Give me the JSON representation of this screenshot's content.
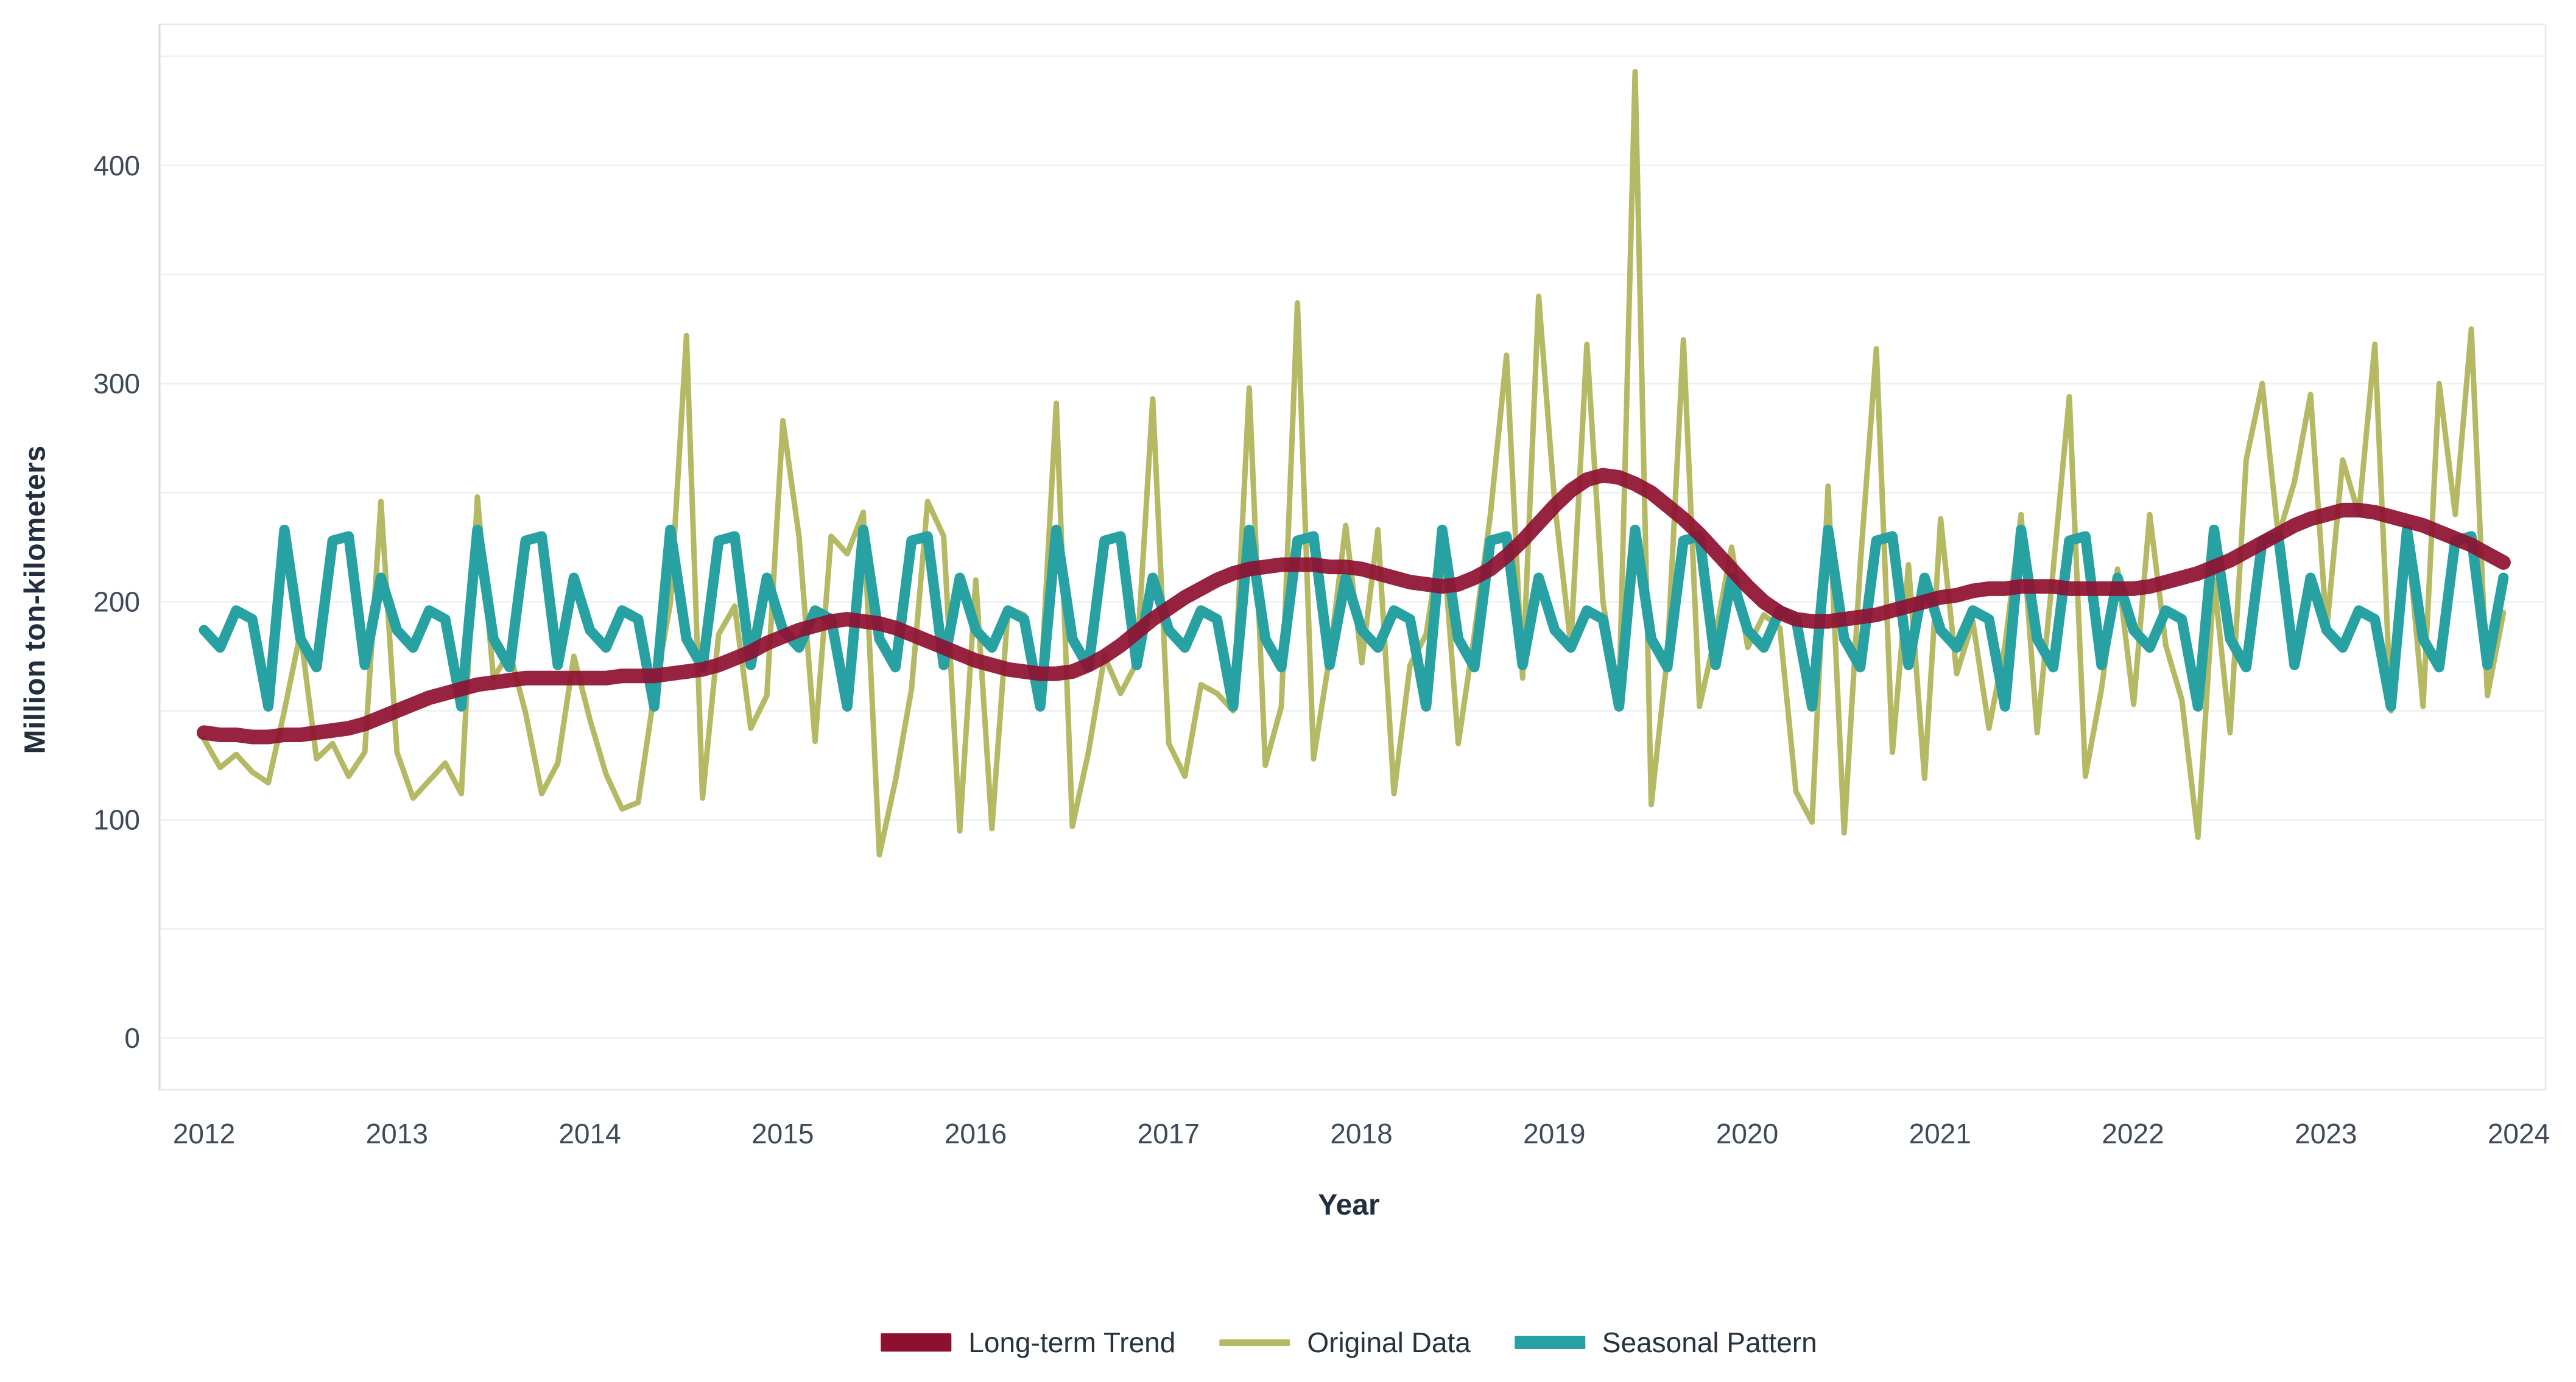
{
  "axes": {
    "y_label": "Million ton-kilometers",
    "x_label": "Year",
    "y_ticks": [
      0,
      100,
      200,
      300,
      400
    ],
    "x_ticks": [
      2012,
      2013,
      2014,
      2015,
      2016,
      2017,
      2018,
      2019,
      2020,
      2021,
      2022,
      2023,
      2024
    ],
    "grid_step": 50,
    "grid_max": 450
  },
  "legend": [
    {
      "label": "Long-term Trend",
      "color": "#8e1030",
      "swatch_height": 30
    },
    {
      "label": "Original Data",
      "color": "#b5b963",
      "swatch_height": 11
    },
    {
      "label": "Seasonal Pattern",
      "color": "#27a1a2",
      "swatch_height": 22
    }
  ],
  "colors": {
    "trend": "#8e1030",
    "original": "#b5b963",
    "seasonal": "#27a1a2",
    "grid": "#edeff2",
    "panel_border": "#e5e8ea",
    "axis_spine": "#d7dadd",
    "tick_text": "#3e4a59",
    "title_text": "#222e3e"
  },
  "chart_data": {
    "type": "line",
    "title": "",
    "xlabel": "Year",
    "ylabel": "Million ton-kilometers",
    "x_start_year": 2012,
    "x_end_year": 2024,
    "points_per_year": 12,
    "n_points": 144,
    "ylim": [
      -25,
      465
    ],
    "grid": "horizontal-only",
    "legend_position": "bottom",
    "series": [
      {
        "name": "Original Data",
        "color": "#b5b963",
        "stroke_width": 9,
        "values": [
          137,
          124,
          130,
          122,
          117,
          150,
          186,
          128,
          135,
          120,
          131,
          246,
          131,
          110,
          118,
          126,
          112,
          248,
          165,
          177,
          149,
          112,
          126,
          175,
          146,
          121,
          105,
          108,
          158,
          199,
          322,
          110,
          185,
          198,
          142,
          157,
          283,
          230,
          136,
          230,
          222,
          241,
          84,
          118,
          160,
          246,
          230,
          95,
          210,
          96,
          197,
          194,
          157,
          291,
          97,
          131,
          175,
          158,
          172,
          293,
          135,
          120,
          162,
          158,
          150,
          298,
          125,
          152,
          337,
          128,
          175,
          235,
          172,
          233,
          112,
          171,
          185,
          233,
          135,
          185,
          240,
          313,
          165,
          340,
          245,
          180,
          318,
          200,
          155,
          443,
          107,
          175,
          320,
          152,
          185,
          225,
          179,
          194,
          188,
          113,
          99,
          253,
          94,
          217,
          316,
          131,
          217,
          119,
          238,
          167,
          191,
          142,
          180,
          240,
          140,
          215,
          294,
          120,
          160,
          215,
          153,
          240,
          180,
          155,
          92,
          210,
          140,
          265,
          300,
          230,
          255,
          295,
          187,
          265,
          240,
          318,
          150,
          233,
          152,
          300,
          240,
          325,
          157,
          195
        ]
      },
      {
        "name": "Seasonal Pattern",
        "color": "#27a1a2",
        "stroke_width": 17,
        "values": [
          187,
          179,
          196,
          192,
          152,
          233,
          183,
          170,
          228,
          230,
          171,
          211,
          187,
          179,
          196,
          192,
          152,
          233,
          183,
          170,
          228,
          230,
          171,
          211,
          187,
          179,
          196,
          192,
          152,
          233,
          183,
          170,
          228,
          230,
          171,
          211,
          187,
          179,
          196,
          192,
          152,
          233,
          183,
          170,
          228,
          230,
          171,
          211,
          187,
          179,
          196,
          192,
          152,
          233,
          183,
          170,
          228,
          230,
          171,
          211,
          187,
          179,
          196,
          192,
          152,
          233,
          183,
          170,
          228,
          230,
          171,
          211,
          187,
          179,
          196,
          192,
          152,
          233,
          183,
          170,
          228,
          230,
          171,
          211,
          187,
          179,
          196,
          192,
          152,
          233,
          183,
          170,
          228,
          230,
          171,
          211,
          187,
          179,
          196,
          192,
          152,
          233,
          183,
          170,
          228,
          230,
          171,
          211,
          187,
          179,
          196,
          192,
          152,
          233,
          183,
          170,
          228,
          230,
          171,
          211,
          187,
          179,
          196,
          192,
          152,
          233,
          183,
          170,
          228,
          230,
          171,
          211,
          187,
          179,
          196,
          192,
          152,
          233,
          183,
          170,
          228,
          230,
          171,
          211
        ]
      },
      {
        "name": "Long-term Trend",
        "color": "#8e1030",
        "stroke_width": 24,
        "values": [
          140,
          139,
          139,
          138,
          138,
          139,
          139,
          140,
          141,
          142,
          144,
          147,
          150,
          153,
          156,
          158,
          160,
          162,
          163,
          164,
          165,
          165,
          165,
          165,
          165,
          165,
          166,
          166,
          166,
          167,
          168,
          169,
          171,
          174,
          177,
          181,
          184,
          187,
          189,
          191,
          192,
          191,
          190,
          188,
          185,
          182,
          179,
          176,
          173,
          171,
          169,
          168,
          167,
          167,
          168,
          171,
          175,
          180,
          186,
          192,
          197,
          202,
          206,
          210,
          213,
          215,
          216,
          217,
          217,
          217,
          216,
          216,
          215,
          213,
          211,
          209,
          208,
          207,
          208,
          211,
          215,
          221,
          228,
          236,
          244,
          251,
          256,
          258,
          257,
          254,
          250,
          244,
          238,
          231,
          223,
          215,
          207,
          200,
          195,
          192,
          191,
          191,
          192,
          193,
          194,
          196,
          198,
          200,
          202,
          203,
          205,
          206,
          206,
          207,
          207,
          207,
          206,
          206,
          206,
          206,
          206,
          207,
          209,
          211,
          213,
          216,
          219,
          223,
          227,
          231,
          235,
          238,
          240,
          242,
          242,
          241,
          239,
          237,
          235,
          232,
          229,
          226,
          222,
          218
        ]
      }
    ]
  }
}
